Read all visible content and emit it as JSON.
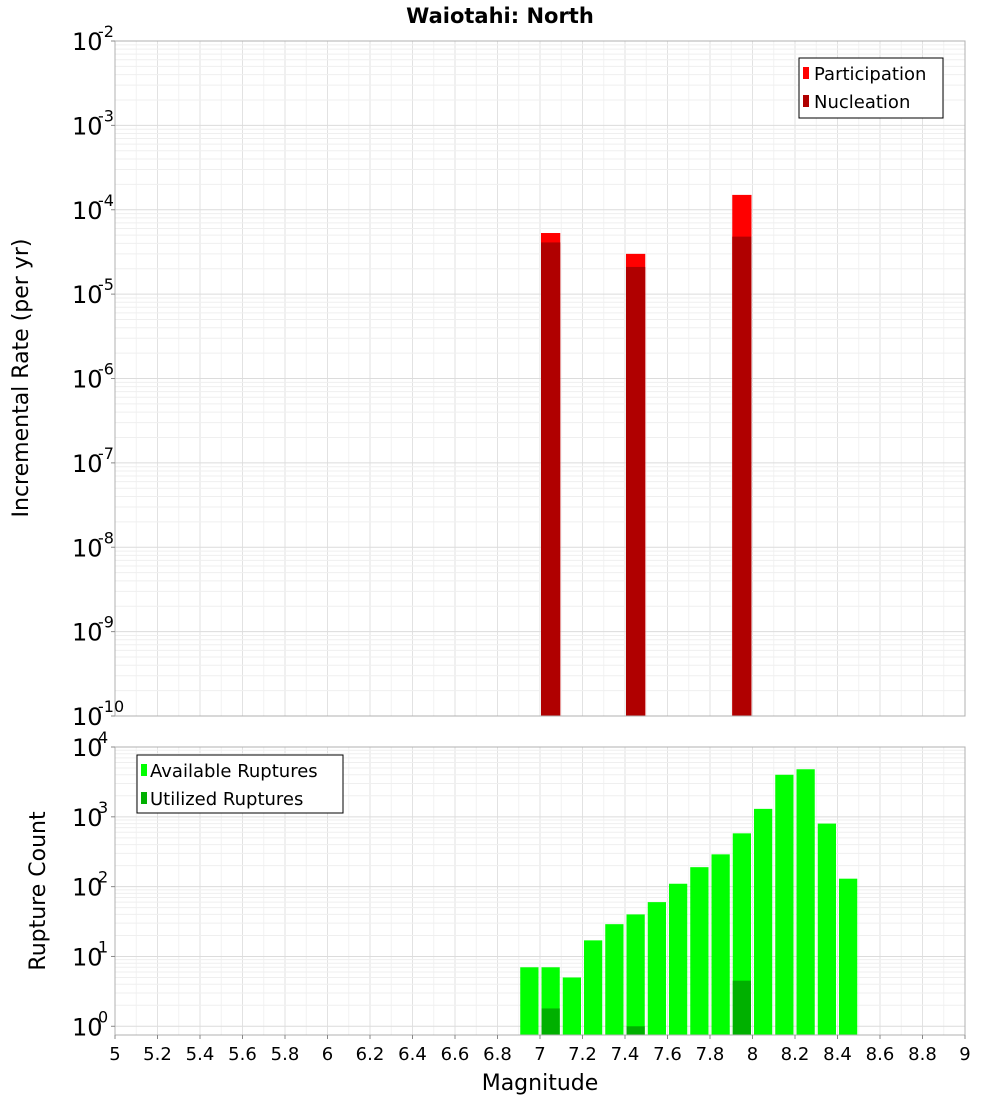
{
  "chart_data": [
    {
      "type": "bar",
      "title": "Waiotahi: North",
      "ylabel": "Incremental Rate (per yr)",
      "xlabel": "",
      "xlim": [
        5,
        9
      ],
      "yscale": "log",
      "ylim": [
        1e-10,
        0.01
      ],
      "ytick_exponents": [
        -10,
        -9,
        -8,
        -7,
        -6,
        -5,
        -4,
        -3,
        -2
      ],
      "grid": true,
      "legend_position": "top-right",
      "bin_width": 0.1,
      "series": [
        {
          "name": "Participation",
          "color": "#ff0000",
          "x": [
            7.05,
            7.45,
            7.95
          ],
          "values": [
            5.3e-05,
            3e-05,
            0.00015
          ]
        },
        {
          "name": "Nucleation",
          "color": "#b00000",
          "x": [
            7.05,
            7.45,
            7.95
          ],
          "values": [
            4.1e-05,
            2.1e-05,
            4.8e-05
          ]
        }
      ]
    },
    {
      "type": "bar",
      "ylabel": "Rupture Count",
      "xlabel": "Magnitude",
      "xlim": [
        5,
        9
      ],
      "xticks": [
        "5",
        "5.2",
        "5.4",
        "5.6",
        "5.8",
        "6",
        "6.2",
        "6.4",
        "6.6",
        "6.8",
        "7",
        "7.2",
        "7.4",
        "7.6",
        "7.8",
        "8",
        "8.2",
        "8.4",
        "8.6",
        "8.8",
        "9"
      ],
      "yscale": "log",
      "ylim": [
        0.75,
        10000
      ],
      "ytick_exponents": [
        0,
        1,
        2,
        3,
        4
      ],
      "grid": true,
      "legend_position": "top-left",
      "bin_width": 0.1,
      "series": [
        {
          "name": "Available Ruptures",
          "color": "#00ff00",
          "x": [
            6.95,
            7.05,
            7.15,
            7.25,
            7.35,
            7.45,
            7.55,
            7.65,
            7.75,
            7.85,
            7.95,
            8.05,
            8.15,
            8.25,
            8.35,
            8.45
          ],
          "values": [
            7,
            7,
            5,
            17,
            29,
            40,
            60,
            110,
            190,
            290,
            580,
            1300,
            4000,
            4800,
            800,
            130
          ]
        },
        {
          "name": "Utilized Ruptures",
          "color": "#00b000",
          "x": [
            7.05,
            7.45,
            7.95
          ],
          "values": [
            1.8,
            1,
            4.5
          ]
        }
      ]
    }
  ]
}
